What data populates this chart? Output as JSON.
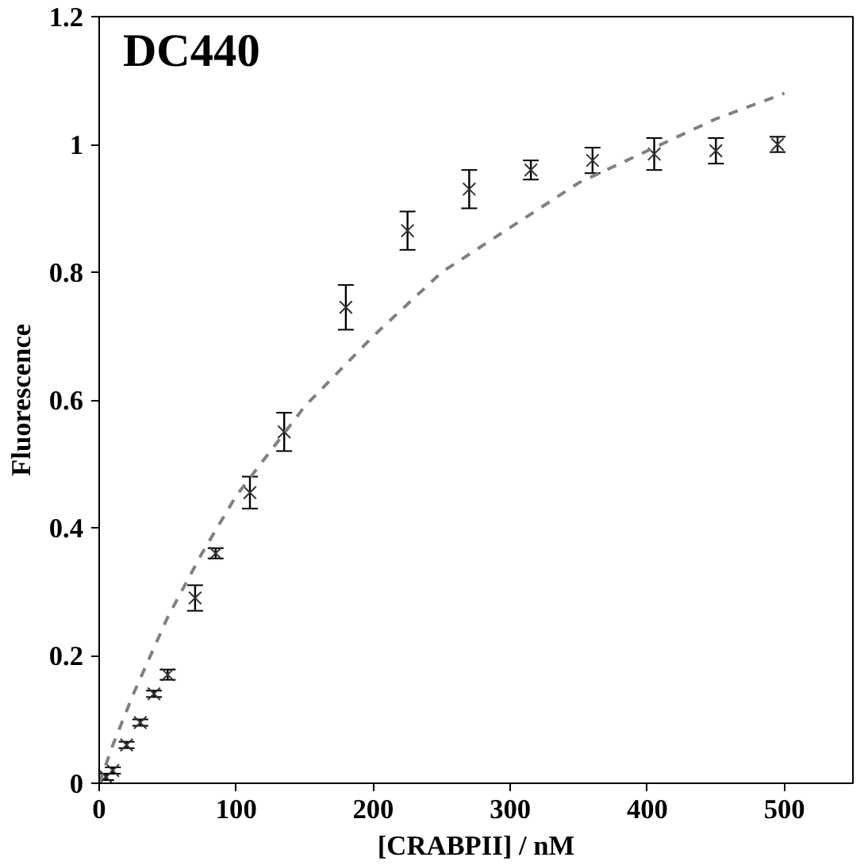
{
  "chart_data": {
    "type": "scatter",
    "title": "DC440",
    "xlabel": "[CRABPII] / nM",
    "ylabel": "Fluorescence",
    "xlim": [
      0,
      550
    ],
    "ylim": [
      0,
      1.2
    ],
    "xticks": [
      0,
      100,
      200,
      300,
      400,
      500
    ],
    "yticks": [
      0,
      {
        "value": 0.2,
        "label": "0.2"
      },
      {
        "value": 0.4,
        "label": "0.4"
      },
      {
        "value": 0.6,
        "label": "0.6"
      },
      {
        "value": 0.8,
        "label": "0.8"
      },
      1,
      {
        "value": 1.2,
        "label": "1.2"
      }
    ],
    "grid": false,
    "series": [
      {
        "color": "#333333",
        "marker": "cross",
        "x": [
          0,
          5,
          10,
          20,
          30,
          40,
          50,
          70,
          85,
          110,
          135,
          180,
          225,
          270,
          315,
          360,
          405,
          450,
          495
        ],
        "values": [
          0,
          0.01,
          0.02,
          0.06,
          0.095,
          0.14,
          0.17,
          0.29,
          0.36,
          0.455,
          0.55,
          0.745,
          0.865,
          0.93,
          0.96,
          0.975,
          0.985,
          0.99,
          1.0
        ],
        "errors": [
          0.005,
          0.005,
          0.005,
          0.005,
          0.005,
          0.005,
          0.008,
          0.02,
          0.008,
          0.025,
          0.03,
          0.035,
          0.03,
          0.03,
          0.015,
          0.02,
          0.025,
          0.02,
          0.012
        ]
      },
      {
        "type": "line",
        "color": "#808080",
        "line_style": "dashed",
        "x": [
          0,
          10,
          25,
          50,
          75,
          100,
          150,
          200,
          250,
          300,
          350,
          400,
          450,
          500
        ],
        "values": [
          0,
          0.06,
          0.14,
          0.26,
          0.36,
          0.45,
          0.59,
          0.7,
          0.8,
          0.87,
          0.94,
          0.99,
          1.04,
          1.08
        ]
      }
    ]
  }
}
